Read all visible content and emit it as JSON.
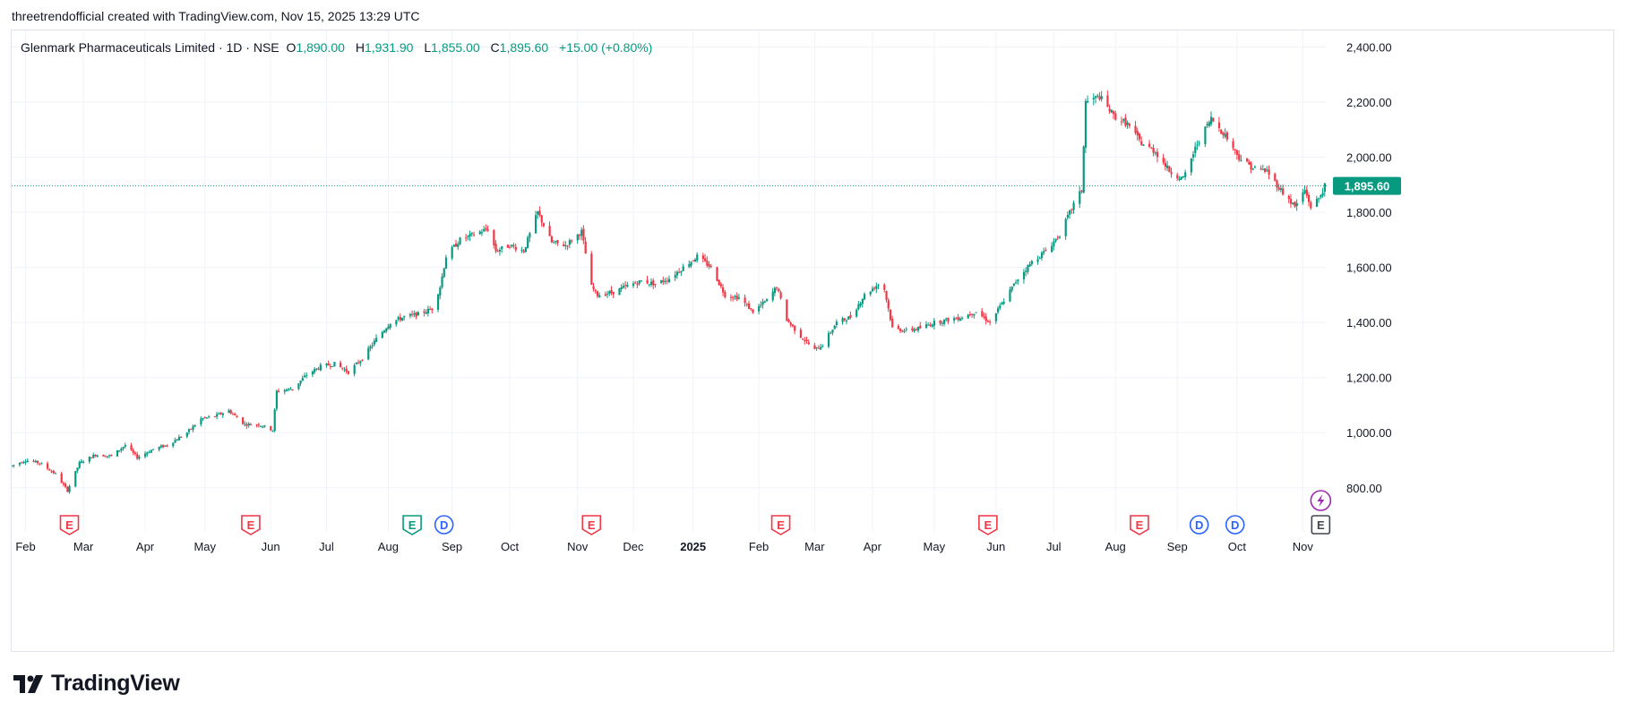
{
  "attribution": "threetrendofficial created with TradingView.com, Nov 15, 2025 13:29 UTC",
  "brand": "TradingView",
  "legend": {
    "title": "Glenmark Pharmaceuticals Limited · 1D · NSE",
    "o_label": "O",
    "o": "1,890.00",
    "h_label": "H",
    "h": "1,931.90",
    "l_label": "L",
    "l": "1,855.00",
    "c_label": "C",
    "c": "1,895.60",
    "change": "+15.00 (+0.80%)"
  },
  "colors": {
    "up": "#089981",
    "down": "#f23645",
    "grid": "#f0f3fa",
    "axis_text": "#131722",
    "event_earnings": "#f23645",
    "event_earnings_green": "#089981",
    "event_dividend": "#2962ff",
    "event_split": "#9c27b0",
    "event_latest": "#434651"
  },
  "chart_data": {
    "type": "candlestick",
    "symbol": "Glenmark Pharmaceuticals Limited",
    "interval": "1D",
    "exchange": "NSE",
    "last_price": 1895.6,
    "last_price_label": "1,895.60",
    "ylim": [
      640,
      2460
    ],
    "y_ticks": [
      {
        "value": 800,
        "label": "800.00"
      },
      {
        "value": 1000,
        "label": "1,000.00"
      },
      {
        "value": 1200,
        "label": "1,200.00"
      },
      {
        "value": 1400,
        "label": "1,400.00"
      },
      {
        "value": 1600,
        "label": "1,600.00"
      },
      {
        "value": 1800,
        "label": "1,800.00"
      },
      {
        "value": 2000,
        "label": "2,000.00"
      },
      {
        "value": 2200,
        "label": "2,200.00"
      },
      {
        "value": 2400,
        "label": "2,400.00"
      }
    ],
    "x_range": [
      "2024-01-25",
      "2025-11-15"
    ],
    "x_ticks": [
      {
        "date": "2024-02-01",
        "label": "Feb",
        "bold": false
      },
      {
        "date": "2024-03-01",
        "label": "Mar",
        "bold": false
      },
      {
        "date": "2024-04-01",
        "label": "Apr",
        "bold": false
      },
      {
        "date": "2024-05-01",
        "label": "May",
        "bold": false
      },
      {
        "date": "2024-06-03",
        "label": "Jun",
        "bold": false
      },
      {
        "date": "2024-07-01",
        "label": "Jul",
        "bold": false
      },
      {
        "date": "2024-08-01",
        "label": "Aug",
        "bold": false
      },
      {
        "date": "2024-09-02",
        "label": "Sep",
        "bold": false
      },
      {
        "date": "2024-10-01",
        "label": "Oct",
        "bold": false
      },
      {
        "date": "2024-11-04",
        "label": "Nov",
        "bold": false
      },
      {
        "date": "2024-12-02",
        "label": "Dec",
        "bold": false
      },
      {
        "date": "2025-01-01",
        "label": "2025",
        "bold": true
      },
      {
        "date": "2025-02-03",
        "label": "Feb",
        "bold": false
      },
      {
        "date": "2025-03-03",
        "label": "Mar",
        "bold": false
      },
      {
        "date": "2025-04-01",
        "label": "Apr",
        "bold": false
      },
      {
        "date": "2025-05-02",
        "label": "May",
        "bold": false
      },
      {
        "date": "2025-06-02",
        "label": "Jun",
        "bold": false
      },
      {
        "date": "2025-07-01",
        "label": "Jul",
        "bold": false
      },
      {
        "date": "2025-08-01",
        "label": "Aug",
        "bold": false
      },
      {
        "date": "2025-09-01",
        "label": "Sep",
        "bold": false
      },
      {
        "date": "2025-10-01",
        "label": "Oct",
        "bold": false
      },
      {
        "date": "2025-11-03",
        "label": "Nov",
        "bold": false
      }
    ],
    "price_path": [
      [
        "2024-01-25",
        880
      ],
      [
        "2024-02-01",
        900
      ],
      [
        "2024-02-08",
        890
      ],
      [
        "2024-02-16",
        850
      ],
      [
        "2024-02-22",
        790
      ],
      [
        "2024-02-28",
        890
      ],
      [
        "2024-03-07",
        920
      ],
      [
        "2024-03-15",
        915
      ],
      [
        "2024-03-22",
        955
      ],
      [
        "2024-03-28",
        910
      ],
      [
        "2024-04-05",
        940
      ],
      [
        "2024-04-12",
        955
      ],
      [
        "2024-04-22",
        1000
      ],
      [
        "2024-04-29",
        1050
      ],
      [
        "2024-05-06",
        1060
      ],
      [
        "2024-05-13",
        1080
      ],
      [
        "2024-05-21",
        1030
      ],
      [
        "2024-05-28",
        1030
      ],
      [
        "2024-06-04",
        1010
      ],
      [
        "2024-06-06",
        1150
      ],
      [
        "2024-06-14",
        1160
      ],
      [
        "2024-06-21",
        1210
      ],
      [
        "2024-06-28",
        1240
      ],
      [
        "2024-07-05",
        1250
      ],
      [
        "2024-07-12",
        1220
      ],
      [
        "2024-07-19",
        1270
      ],
      [
        "2024-07-26",
        1340
      ],
      [
        "2024-08-02",
        1400
      ],
      [
        "2024-08-09",
        1420
      ],
      [
        "2024-08-16",
        1430
      ],
      [
        "2024-08-23",
        1450
      ],
      [
        "2024-08-27",
        1530
      ],
      [
        "2024-08-30",
        1640
      ],
      [
        "2024-09-06",
        1700
      ],
      [
        "2024-09-13",
        1720
      ],
      [
        "2024-09-20",
        1740
      ],
      [
        "2024-09-24",
        1660
      ],
      [
        "2024-10-01",
        1680
      ],
      [
        "2024-10-08",
        1660
      ],
      [
        "2024-10-15",
        1800
      ],
      [
        "2024-10-22",
        1690
      ],
      [
        "2024-10-29",
        1680
      ],
      [
        "2024-11-06",
        1730
      ],
      [
        "2024-11-11",
        1530
      ],
      [
        "2024-11-14",
        1500
      ],
      [
        "2024-11-22",
        1510
      ],
      [
        "2024-11-28",
        1530
      ],
      [
        "2024-12-06",
        1550
      ],
      [
        "2024-12-13",
        1540
      ],
      [
        "2024-12-20",
        1560
      ],
      [
        "2024-12-27",
        1600
      ],
      [
        "2025-01-03",
        1640
      ],
      [
        "2025-01-10",
        1600
      ],
      [
        "2025-01-17",
        1500
      ],
      [
        "2025-01-24",
        1490
      ],
      [
        "2025-01-31",
        1440
      ],
      [
        "2025-02-07",
        1480
      ],
      [
        "2025-02-12",
        1530
      ],
      [
        "2025-02-17",
        1410
      ],
      [
        "2025-02-24",
        1350
      ],
      [
        "2025-03-03",
        1300
      ],
      [
        "2025-03-07",
        1320
      ],
      [
        "2025-03-14",
        1400
      ],
      [
        "2025-03-21",
        1420
      ],
      [
        "2025-03-28",
        1500
      ],
      [
        "2025-04-04",
        1540
      ],
      [
        "2025-04-07",
        1520
      ],
      [
        "2025-04-11",
        1380
      ],
      [
        "2025-04-18",
        1370
      ],
      [
        "2025-04-25",
        1380
      ],
      [
        "2025-05-02",
        1400
      ],
      [
        "2025-05-09",
        1410
      ],
      [
        "2025-05-16",
        1420
      ],
      [
        "2025-05-23",
        1440
      ],
      [
        "2025-05-30",
        1400
      ],
      [
        "2025-06-06",
        1480
      ],
      [
        "2025-06-13",
        1560
      ],
      [
        "2025-06-20",
        1620
      ],
      [
        "2025-06-27",
        1660
      ],
      [
        "2025-07-04",
        1720
      ],
      [
        "2025-07-11",
        1830
      ],
      [
        "2025-07-15",
        1880
      ],
      [
        "2025-07-17",
        2200
      ],
      [
        "2025-07-24",
        2220
      ],
      [
        "2025-07-31",
        2150
      ],
      [
        "2025-08-07",
        2120
      ],
      [
        "2025-08-14",
        2050
      ],
      [
        "2025-08-21",
        2020
      ],
      [
        "2025-08-28",
        1950
      ],
      [
        "2025-09-04",
        1920
      ],
      [
        "2025-09-11",
        2050
      ],
      [
        "2025-09-18",
        2140
      ],
      [
        "2025-09-25",
        2080
      ],
      [
        "2025-10-02",
        2000
      ],
      [
        "2025-10-09",
        1960
      ],
      [
        "2025-10-16",
        1950
      ],
      [
        "2025-10-23",
        1880
      ],
      [
        "2025-10-30",
        1820
      ],
      [
        "2025-11-04",
        1880
      ],
      [
        "2025-11-07",
        1820
      ],
      [
        "2025-11-11",
        1850
      ],
      [
        "2025-11-14",
        1895.6
      ]
    ],
    "events": [
      {
        "date": "2024-02-23",
        "kind": "earnings",
        "label": "E"
      },
      {
        "date": "2024-05-24",
        "kind": "earnings",
        "label": "E"
      },
      {
        "date": "2024-08-13",
        "kind": "earnings-green",
        "label": "E"
      },
      {
        "date": "2024-08-29",
        "kind": "dividend",
        "label": "D"
      },
      {
        "date": "2024-11-11",
        "kind": "earnings",
        "label": "E"
      },
      {
        "date": "2025-02-14",
        "kind": "earnings",
        "label": "E"
      },
      {
        "date": "2025-05-29",
        "kind": "earnings",
        "label": "E"
      },
      {
        "date": "2025-08-13",
        "kind": "earnings",
        "label": "E"
      },
      {
        "date": "2025-09-12",
        "kind": "dividend",
        "label": "D"
      },
      {
        "date": "2025-09-30",
        "kind": "dividend",
        "label": "D"
      },
      {
        "date": "2025-11-12",
        "kind": "earnings-latest",
        "label": "E"
      }
    ],
    "split_event_date": "2025-11-12"
  }
}
